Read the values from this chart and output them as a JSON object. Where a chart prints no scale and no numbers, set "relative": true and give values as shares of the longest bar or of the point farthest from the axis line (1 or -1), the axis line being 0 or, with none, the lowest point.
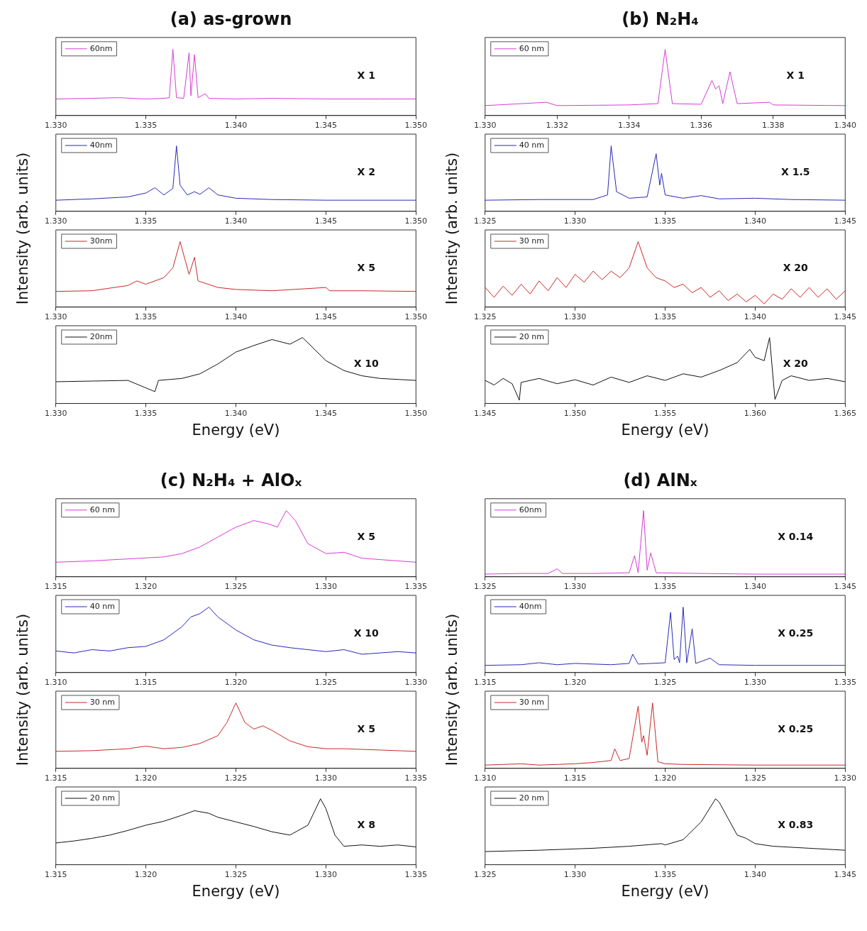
{
  "chart_data": [
    {
      "type": "line",
      "title": "(a) as-grown",
      "relative": true,
      "tick_labels": "x",
      "legend": "top left",
      "annotations": [
        "X 1"
      ],
      "xlim": [
        1.33,
        1.35
      ],
      "xticks": [
        {
          "value": 1.33,
          "label": "1.330"
        },
        1.335,
        {
          "value": 1.34,
          "label": "1.340"
        },
        1.345,
        {
          "value": 1.35,
          "label": "1.350"
        }
      ],
      "x": [
        1.33,
        1.332,
        1.3335,
        1.335,
        1.336,
        1.3363,
        1.3365,
        1.3367,
        1.3371,
        1.3374,
        1.3375,
        1.3377,
        1.3379,
        1.3383,
        1.3385,
        1.34,
        1.342,
        1.345,
        1.348,
        1.35
      ],
      "series": [
        {
          "name": "60nm",
          "color": "#d63bd6",
          "values": [
            0.25,
            0.26,
            0.27,
            0.25,
            0.26,
            0.27,
            1.0,
            0.27,
            0.26,
            0.95,
            0.3,
            0.92,
            0.27,
            0.33,
            0.26,
            0.25,
            0.26,
            0.25,
            0.25,
            0.25
          ]
        }
      ]
    },
    {
      "type": "line",
      "ylabel": "Intensity (arb. units)",
      "relative": true,
      "tick_labels": "x",
      "legend": "top left",
      "annotations": [
        "X 2"
      ],
      "xlim": [
        1.33,
        1.35
      ],
      "xticks": [
        {
          "value": 1.33,
          "label": "1.330"
        },
        1.335,
        {
          "value": 1.34,
          "label": "1.340"
        },
        1.345,
        {
          "value": 1.35,
          "label": "1.350"
        }
      ],
      "x": [
        1.33,
        1.332,
        1.334,
        1.335,
        1.3355,
        1.336,
        1.3365,
        1.3367,
        1.3369,
        1.3373,
        1.3377,
        1.338,
        1.3385,
        1.339,
        1.34,
        1.342,
        1.345,
        1.35
      ],
      "series": [
        {
          "name": "40nm",
          "color": "#2828b8",
          "values": [
            0.17,
            0.19,
            0.22,
            0.28,
            0.36,
            0.25,
            0.35,
            1.0,
            0.4,
            0.25,
            0.3,
            0.26,
            0.36,
            0.25,
            0.2,
            0.18,
            0.17,
            0.17
          ]
        }
      ]
    },
    {
      "type": "line",
      "relative": true,
      "tick_labels": "x",
      "legend": "top left",
      "annotations": [
        "X 5"
      ],
      "xlim": [
        1.33,
        1.35
      ],
      "xticks": [
        {
          "value": 1.33,
          "label": "1.330"
        },
        1.335,
        {
          "value": 1.34,
          "label": "1.340"
        },
        1.345,
        {
          "value": 1.35,
          "label": "1.350"
        }
      ],
      "x": [
        1.33,
        1.332,
        1.334,
        1.3345,
        1.335,
        1.336,
        1.3365,
        1.3369,
        1.3372,
        1.3374,
        1.3377,
        1.3379,
        1.339,
        1.34,
        1.342,
        1.345,
        1.3452,
        1.347,
        1.35
      ],
      "series": [
        {
          "name": "30nm",
          "color": "#c82828",
          "values": [
            0.24,
            0.25,
            0.33,
            0.4,
            0.35,
            0.45,
            0.6,
            1.0,
            0.7,
            0.5,
            0.76,
            0.4,
            0.3,
            0.27,
            0.25,
            0.3,
            0.25,
            0.25,
            0.24
          ]
        }
      ]
    },
    {
      "type": "line",
      "xlabel": "Energy (eV)",
      "relative": true,
      "tick_labels": "x",
      "legend": "top left",
      "annotations": [
        "X 10"
      ],
      "xlim": [
        1.33,
        1.35
      ],
      "xticks": [
        {
          "value": 1.33,
          "label": "1.330"
        },
        1.335,
        {
          "value": 1.34,
          "label": "1.340"
        },
        1.345,
        {
          "value": 1.35,
          "label": "1.350"
        }
      ],
      "x": [
        1.33,
        1.332,
        1.334,
        1.3355,
        1.3357,
        1.337,
        1.338,
        1.339,
        1.34,
        1.341,
        1.342,
        1.343,
        1.3437,
        1.344,
        1.345,
        1.346,
        1.347,
        1.348,
        1.35
      ],
      "series": [
        {
          "name": "20nm",
          "color": "#111111",
          "values": [
            0.33,
            0.34,
            0.35,
            0.18,
            0.35,
            0.38,
            0.45,
            0.6,
            0.78,
            0.88,
            0.97,
            0.9,
            1.0,
            0.92,
            0.65,
            0.5,
            0.42,
            0.38,
            0.35
          ]
        }
      ]
    },
    {
      "type": "line",
      "title": "(b) N₂H₄",
      "relative": true,
      "tick_labels": "x",
      "legend": "top left",
      "annotations": [
        "X 1"
      ],
      "xlim": [
        1.33,
        1.34
      ],
      "xticks": [
        {
          "value": 1.33,
          "label": "1.330"
        },
        1.332,
        1.334,
        1.336,
        1.338,
        {
          "value": 1.34,
          "label": "1.340"
        }
      ],
      "x": [
        1.33,
        1.3317,
        1.332,
        1.334,
        1.3348,
        1.335,
        1.3352,
        1.336,
        1.3363,
        1.3364,
        1.3365,
        1.3366,
        1.3368,
        1.337,
        1.3379,
        1.338,
        1.34
      ],
      "series": [
        {
          "name": "60 nm",
          "color": "#d63bd6",
          "values": [
            0.15,
            0.2,
            0.15,
            0.16,
            0.18,
            1.0,
            0.18,
            0.17,
            0.53,
            0.4,
            0.45,
            0.18,
            0.66,
            0.18,
            0.2,
            0.16,
            0.15
          ]
        }
      ]
    },
    {
      "type": "line",
      "ylabel": "Intensity (arb. units)",
      "relative": true,
      "tick_labels": "x",
      "legend": "top left",
      "annotations": [
        "X 1.5"
      ],
      "xlim": [
        1.325,
        1.345
      ],
      "xticks": [
        1.325,
        {
          "value": 1.33,
          "label": "1.330"
        },
        1.335,
        {
          "value": 1.34,
          "label": "1.340"
        },
        1.345
      ],
      "x": [
        1.325,
        1.328,
        1.331,
        1.3318,
        1.332,
        1.3323,
        1.333,
        1.334,
        1.3345,
        1.3347,
        1.3348,
        1.335,
        1.336,
        1.337,
        1.338,
        1.34,
        1.342,
        1.345
      ],
      "series": [
        {
          "name": "40 nm",
          "color": "#2828b8",
          "values": [
            0.17,
            0.18,
            0.18,
            0.25,
            1.0,
            0.3,
            0.2,
            0.22,
            0.88,
            0.4,
            0.58,
            0.25,
            0.2,
            0.24,
            0.19,
            0.2,
            0.18,
            0.17
          ]
        }
      ]
    },
    {
      "type": "line",
      "relative": true,
      "tick_labels": "x",
      "legend": "top left",
      "annotations": [
        "X 20"
      ],
      "xlim": [
        1.325,
        1.345
      ],
      "xticks": [
        1.325,
        {
          "value": 1.33,
          "label": "1.330"
        },
        1.335,
        {
          "value": 1.34,
          "label": "1.340"
        },
        1.345
      ],
      "x": [
        1.325,
        1.3255,
        1.326,
        1.3265,
        1.327,
        1.3275,
        1.328,
        1.3285,
        1.329,
        1.3295,
        1.33,
        1.3305,
        1.331,
        1.3315,
        1.332,
        1.3325,
        1.333,
        1.3335,
        1.334,
        1.3345,
        1.335,
        1.3355,
        1.336,
        1.3365,
        1.337,
        1.3375,
        1.338,
        1.3385,
        1.339,
        1.3395,
        1.34,
        1.3405,
        1.341,
        1.3415,
        1.342,
        1.3425,
        1.343,
        1.3435,
        1.344,
        1.3445,
        1.345
      ],
      "series": [
        {
          "name": "30 nm",
          "color": "#c82828",
          "values": [
            0.3,
            0.15,
            0.32,
            0.18,
            0.35,
            0.2,
            0.4,
            0.25,
            0.45,
            0.3,
            0.5,
            0.38,
            0.55,
            0.42,
            0.55,
            0.45,
            0.6,
            1.0,
            0.6,
            0.45,
            0.4,
            0.3,
            0.35,
            0.22,
            0.3,
            0.15,
            0.25,
            0.1,
            0.2,
            0.08,
            0.18,
            0.05,
            0.2,
            0.12,
            0.28,
            0.15,
            0.3,
            0.15,
            0.28,
            0.12,
            0.25
          ]
        }
      ]
    },
    {
      "type": "line",
      "xlabel": "Energy (eV)",
      "relative": true,
      "tick_labels": "x",
      "legend": "top left",
      "annotations": [
        "X 20"
      ],
      "xlim": [
        1.345,
        1.365
      ],
      "xticks": [
        1.345,
        {
          "value": 1.35,
          "label": "1.350"
        },
        1.355,
        {
          "value": 1.36,
          "label": "1.360"
        },
        1.365
      ],
      "x": [
        1.345,
        1.3455,
        1.346,
        1.3465,
        1.3469,
        1.347,
        1.348,
        1.349,
        1.35,
        1.351,
        1.352,
        1.353,
        1.354,
        1.355,
        1.356,
        1.357,
        1.358,
        1.359,
        1.3597,
        1.36,
        1.3605,
        1.3608,
        1.3611,
        1.3615,
        1.362,
        1.363,
        1.364,
        1.365
      ],
      "series": [
        {
          "name": "20 nm",
          "color": "#111111",
          "values": [
            0.35,
            0.28,
            0.38,
            0.3,
            0.05,
            0.32,
            0.38,
            0.3,
            0.36,
            0.28,
            0.4,
            0.32,
            0.42,
            0.35,
            0.45,
            0.4,
            0.5,
            0.62,
            0.82,
            0.7,
            0.65,
            1.0,
            0.06,
            0.35,
            0.42,
            0.35,
            0.38,
            0.33
          ]
        }
      ]
    },
    {
      "type": "line",
      "title": "(c) N₂H₄ + AlOₓ",
      "relative": true,
      "tick_labels": "x",
      "legend": "top left",
      "annotations": [
        "X 5"
      ],
      "xlim": [
        1.315,
        1.335
      ],
      "xticks": [
        1.315,
        {
          "value": 1.32,
          "label": "1.320"
        },
        1.325,
        {
          "value": 1.33,
          "label": "1.330"
        },
        1.335
      ],
      "x": [
        1.315,
        1.317,
        1.319,
        1.321,
        1.322,
        1.323,
        1.324,
        1.325,
        1.326,
        1.3268,
        1.3273,
        1.3278,
        1.3283,
        1.329,
        1.33,
        1.331,
        1.332,
        1.333,
        1.335
      ],
      "series": [
        {
          "name": "60 nm",
          "color": "#d63bd6",
          "values": [
            0.22,
            0.24,
            0.27,
            0.3,
            0.35,
            0.45,
            0.6,
            0.75,
            0.85,
            0.8,
            0.75,
            1.0,
            0.85,
            0.5,
            0.35,
            0.37,
            0.28,
            0.26,
            0.22
          ]
        }
      ]
    },
    {
      "type": "line",
      "ylabel": "Intensity (arb. units)",
      "relative": true,
      "tick_labels": "x",
      "legend": "top left",
      "annotations": [
        "X 10"
      ],
      "xlim": [
        1.31,
        1.33
      ],
      "xticks": [
        {
          "value": 1.31,
          "label": "1.310"
        },
        1.315,
        {
          "value": 1.32,
          "label": "1.320"
        },
        1.325,
        {
          "value": 1.33,
          "label": "1.330"
        }
      ],
      "x": [
        1.31,
        1.311,
        1.312,
        1.313,
        1.314,
        1.315,
        1.316,
        1.317,
        1.3175,
        1.318,
        1.3185,
        1.319,
        1.32,
        1.321,
        1.322,
        1.323,
        1.324,
        1.325,
        1.326,
        1.327,
        1.328,
        1.329,
        1.33
      ],
      "series": [
        {
          "name": "40 nm",
          "color": "#2828b8",
          "values": [
            0.33,
            0.3,
            0.35,
            0.33,
            0.38,
            0.4,
            0.5,
            0.7,
            0.85,
            0.9,
            1.0,
            0.85,
            0.65,
            0.5,
            0.42,
            0.38,
            0.35,
            0.32,
            0.35,
            0.28,
            0.3,
            0.32,
            0.3
          ]
        }
      ]
    },
    {
      "type": "line",
      "relative": true,
      "tick_labels": "x",
      "legend": "top left",
      "annotations": [
        "X 5"
      ],
      "xlim": [
        1.315,
        1.335
      ],
      "xticks": [
        1.315,
        {
          "value": 1.32,
          "label": "1.320"
        },
        1.325,
        {
          "value": 1.33,
          "label": "1.330"
        },
        1.335
      ],
      "x": [
        1.315,
        1.317,
        1.319,
        1.32,
        1.321,
        1.322,
        1.323,
        1.324,
        1.3245,
        1.325,
        1.3255,
        1.326,
        1.3265,
        1.327,
        1.328,
        1.329,
        1.33,
        1.331,
        1.333,
        1.335
      ],
      "series": [
        {
          "name": "30 nm",
          "color": "#c82828",
          "values": [
            0.26,
            0.27,
            0.3,
            0.34,
            0.3,
            0.32,
            0.38,
            0.5,
            0.7,
            1.0,
            0.7,
            0.6,
            0.65,
            0.58,
            0.42,
            0.33,
            0.3,
            0.3,
            0.28,
            0.26
          ]
        }
      ]
    },
    {
      "type": "line",
      "xlabel": "Energy (eV)",
      "relative": true,
      "tick_labels": "x",
      "legend": "top left",
      "annotations": [
        "X 8"
      ],
      "xlim": [
        1.315,
        1.335
      ],
      "xticks": [
        1.315,
        {
          "value": 1.32,
          "label": "1.320"
        },
        1.325,
        {
          "value": 1.33,
          "label": "1.330"
        },
        1.335
      ],
      "x": [
        1.315,
        1.316,
        1.317,
        1.318,
        1.319,
        1.32,
        1.321,
        1.322,
        1.3227,
        1.3235,
        1.324,
        1.325,
        1.326,
        1.327,
        1.328,
        1.329,
        1.3297,
        1.33,
        1.3305,
        1.331,
        1.332,
        1.333,
        1.334,
        1.335
      ],
      "series": [
        {
          "name": "20 nm",
          "color": "#111111",
          "values": [
            0.33,
            0.36,
            0.4,
            0.45,
            0.52,
            0.6,
            0.66,
            0.75,
            0.82,
            0.78,
            0.72,
            0.65,
            0.58,
            0.5,
            0.45,
            0.6,
            1.0,
            0.85,
            0.45,
            0.28,
            0.3,
            0.28,
            0.3,
            0.27
          ]
        }
      ]
    },
    {
      "type": "line",
      "title": "(d) AlNₓ",
      "relative": true,
      "tick_labels": "x",
      "legend": "top left",
      "annotations": [
        "X 0.14"
      ],
      "xlim": [
        1.325,
        1.345
      ],
      "xticks": [
        1.325,
        {
          "value": 1.33,
          "label": "1.330"
        },
        1.335,
        {
          "value": 1.34,
          "label": "1.340"
        },
        1.345
      ],
      "x": [
        1.325,
        1.327,
        1.3285,
        1.329,
        1.3293,
        1.331,
        1.333,
        1.3333,
        1.3335,
        1.3338,
        1.334,
        1.3342,
        1.3345,
        1.337,
        1.34,
        1.345
      ],
      "series": [
        {
          "name": "60nm",
          "color": "#d63bd6",
          "values": [
            0.04,
            0.05,
            0.05,
            0.12,
            0.05,
            0.05,
            0.06,
            0.32,
            0.06,
            1.0,
            0.1,
            0.36,
            0.06,
            0.05,
            0.04,
            0.04
          ]
        }
      ]
    },
    {
      "type": "line",
      "ylabel": "Intensity (arb. units)",
      "relative": true,
      "tick_labels": "x",
      "legend": "top left",
      "annotations": [
        "X 0.25"
      ],
      "xlim": [
        1.315,
        1.335
      ],
      "xticks": [
        1.315,
        {
          "value": 1.32,
          "label": "1.320"
        },
        1.325,
        {
          "value": 1.33,
          "label": "1.330"
        },
        1.335
      ],
      "x": [
        1.315,
        1.317,
        1.318,
        1.319,
        1.32,
        1.322,
        1.323,
        1.3232,
        1.3235,
        1.325,
        1.3253,
        1.3255,
        1.3257,
        1.3258,
        1.326,
        1.3262,
        1.3265,
        1.3267,
        1.3275,
        1.328,
        1.33,
        1.335
      ],
      "series": [
        {
          "name": "40nm",
          "color": "#2828b8",
          "values": [
            0.11,
            0.12,
            0.15,
            0.12,
            0.14,
            0.12,
            0.14,
            0.28,
            0.13,
            0.15,
            0.92,
            0.2,
            0.25,
            0.15,
            1.0,
            0.15,
            0.67,
            0.14,
            0.22,
            0.12,
            0.11,
            0.11
          ]
        }
      ]
    },
    {
      "type": "line",
      "relative": true,
      "tick_labels": "x",
      "legend": "top left",
      "annotations": [
        "X 0.25"
      ],
      "xlim": [
        1.31,
        1.33
      ],
      "xticks": [
        {
          "value": 1.31,
          "label": "1.310"
        },
        1.315,
        {
          "value": 1.32,
          "label": "1.320"
        },
        1.325,
        {
          "value": 1.33,
          "label": "1.330"
        }
      ],
      "x": [
        1.31,
        1.312,
        1.313,
        1.315,
        1.316,
        1.317,
        1.3172,
        1.3175,
        1.318,
        1.3185,
        1.3187,
        1.3188,
        1.319,
        1.3193,
        1.3196,
        1.32,
        1.321,
        1.325,
        1.33
      ],
      "series": [
        {
          "name": "30 nm",
          "color": "#c82828",
          "values": [
            0.05,
            0.07,
            0.05,
            0.07,
            0.09,
            0.12,
            0.3,
            0.12,
            0.15,
            0.95,
            0.4,
            0.5,
            0.2,
            1.0,
            0.1,
            0.07,
            0.06,
            0.05,
            0.05
          ]
        }
      ]
    },
    {
      "type": "line",
      "xlabel": "Energy (eV)",
      "relative": true,
      "tick_labels": "x",
      "legend": "top left",
      "annotations": [
        "X 0.83"
      ],
      "xlim": [
        1.325,
        1.345
      ],
      "xticks": [
        1.325,
        {
          "value": 1.33,
          "label": "1.330"
        },
        1.335,
        {
          "value": 1.34,
          "label": "1.340"
        },
        1.345
      ],
      "x": [
        1.325,
        1.328,
        1.331,
        1.333,
        1.3348,
        1.335,
        1.336,
        1.337,
        1.3378,
        1.338,
        1.3385,
        1.339,
        1.3395,
        1.34,
        1.341,
        1.343,
        1.345
      ],
      "series": [
        {
          "name": "20 nm",
          "color": "#111111",
          "values": [
            0.2,
            0.22,
            0.25,
            0.28,
            0.32,
            0.3,
            0.38,
            0.65,
            1.0,
            0.95,
            0.7,
            0.45,
            0.4,
            0.32,
            0.28,
            0.25,
            0.22
          ]
        }
      ]
    }
  ]
}
